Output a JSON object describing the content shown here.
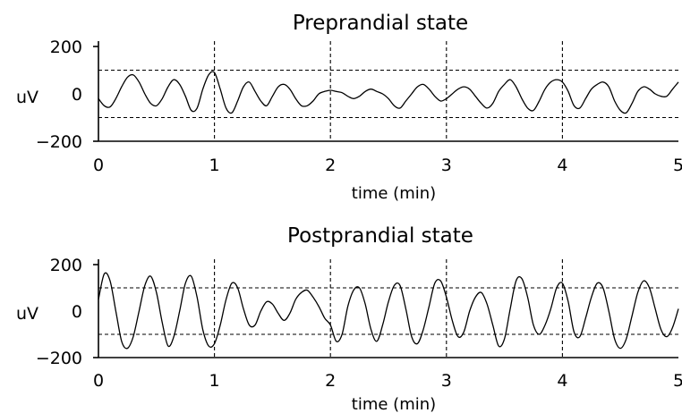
{
  "chart_data": [
    {
      "type": "line",
      "title": "Preprandial state",
      "xlabel": "time (min)",
      "ylabel": "uV",
      "xlim": [
        0,
        5
      ],
      "ylim": [
        -200,
        200
      ],
      "xticks": [
        "0",
        "1",
        "2",
        "3",
        "4",
        "5"
      ],
      "yticks": [
        "200",
        "0",
        "-200"
      ],
      "reference_lines_y": [
        100,
        -100
      ],
      "reference_lines_x": [
        1,
        2,
        3,
        4
      ],
      "grid": false,
      "series": [
        {
          "x": [
            0,
            0.05,
            0.1,
            0.15,
            0.2,
            0.25,
            0.3,
            0.35,
            0.4,
            0.45,
            0.5,
            0.55,
            0.6,
            0.65,
            0.7,
            0.75,
            0.8,
            0.85,
            0.9,
            0.95,
            1.0,
            1.05,
            1.1,
            1.15,
            1.2,
            1.25,
            1.3,
            1.35,
            1.4,
            1.45,
            1.5,
            1.55,
            1.6,
            1.65,
            1.7,
            1.75,
            1.8,
            1.85,
            1.9,
            1.95,
            2.0,
            2.05,
            2.1,
            2.15,
            2.2,
            2.25,
            2.3,
            2.35,
            2.4,
            2.45,
            2.5,
            2.55,
            2.6,
            2.65,
            2.7,
            2.75,
            2.8,
            2.85,
            2.9,
            2.95,
            3.0,
            3.05,
            3.1,
            3.15,
            3.2,
            3.25,
            3.3,
            3.35,
            3.4,
            3.45,
            3.5,
            3.55,
            3.6,
            3.65,
            3.7,
            3.75,
            3.8,
            3.85,
            3.9,
            3.95,
            4.0,
            4.05,
            4.1,
            4.15,
            4.2,
            4.25,
            4.3,
            4.35,
            4.4,
            4.45,
            4.5,
            4.55,
            4.6,
            4.65,
            4.7,
            4.75,
            4.8,
            4.85,
            4.9,
            4.95,
            5.0
          ],
          "y": [
            -20,
            -50,
            -55,
            -20,
            30,
            70,
            80,
            50,
            0,
            -40,
            -50,
            -20,
            30,
            60,
            40,
            -10,
            -70,
            -60,
            20,
            80,
            90,
            20,
            -60,
            -80,
            -30,
            30,
            50,
            10,
            -30,
            -50,
            -10,
            30,
            40,
            20,
            -20,
            -50,
            -50,
            -30,
            0,
            10,
            15,
            10,
            5,
            -10,
            -20,
            -10,
            10,
            20,
            10,
            0,
            -20,
            -50,
            -60,
            -30,
            0,
            30,
            40,
            20,
            -10,
            -30,
            -20,
            0,
            20,
            30,
            20,
            -10,
            -40,
            -60,
            -40,
            10,
            40,
            60,
            30,
            -20,
            -60,
            -70,
            -30,
            20,
            50,
            60,
            50,
            10,
            -50,
            -60,
            -20,
            20,
            40,
            50,
            30,
            -30,
            -70,
            -80,
            -40,
            10,
            30,
            20,
            0,
            -10,
            -10,
            20,
            50
          ]
        }
      ]
    },
    {
      "type": "line",
      "title": "Postprandial state",
      "xlabel": "time (min)",
      "ylabel": "uV",
      "xlim": [
        0,
        5
      ],
      "ylim": [
        -200,
        200
      ],
      "xticks": [
        "0",
        "1",
        "2",
        "3",
        "4",
        "5"
      ],
      "yticks": [
        "200",
        "0",
        "-200"
      ],
      "reference_lines_y": [
        100,
        -100
      ],
      "reference_lines_x": [
        1,
        2,
        3,
        4
      ],
      "grid": false,
      "series": [
        {
          "x": [
            0,
            0.05,
            0.1,
            0.15,
            0.2,
            0.25,
            0.3,
            0.35,
            0.4,
            0.45,
            0.5,
            0.55,
            0.6,
            0.65,
            0.7,
            0.75,
            0.8,
            0.85,
            0.9,
            0.95,
            1.0,
            1.05,
            1.1,
            1.15,
            1.2,
            1.25,
            1.3,
            1.35,
            1.4,
            1.45,
            1.5,
            1.55,
            1.6,
            1.65,
            1.7,
            1.75,
            1.8,
            1.85,
            1.9,
            1.95,
            2.0,
            2.05,
            2.1,
            2.15,
            2.2,
            2.25,
            2.3,
            2.35,
            2.4,
            2.45,
            2.5,
            2.55,
            2.6,
            2.65,
            2.7,
            2.75,
            2.8,
            2.85,
            2.9,
            2.95,
            3.0,
            3.05,
            3.1,
            3.15,
            3.2,
            3.25,
            3.3,
            3.35,
            3.4,
            3.45,
            3.5,
            3.55,
            3.6,
            3.65,
            3.7,
            3.75,
            3.8,
            3.85,
            3.9,
            3.95,
            4.0,
            4.05,
            4.1,
            4.15,
            4.2,
            4.25,
            4.3,
            4.35,
            4.4,
            4.45,
            4.5,
            4.55,
            4.6,
            4.65,
            4.7,
            4.75,
            4.8,
            4.85,
            4.9,
            4.95,
            5.0
          ],
          "y": [
            50,
            160,
            130,
            0,
            -130,
            -160,
            -110,
            0,
            110,
            150,
            80,
            -50,
            -150,
            -110,
            0,
            120,
            150,
            60,
            -80,
            -150,
            -140,
            -60,
            50,
            120,
            100,
            10,
            -60,
            -60,
            0,
            40,
            30,
            -10,
            -40,
            -10,
            50,
            80,
            90,
            60,
            20,
            -30,
            -60,
            -130,
            -100,
            20,
            90,
            100,
            30,
            -80,
            -130,
            -60,
            40,
            110,
            110,
            10,
            -110,
            -140,
            -80,
            20,
            120,
            130,
            60,
            -40,
            -110,
            -90,
            0,
            60,
            80,
            30,
            -60,
            -150,
            -120,
            10,
            130,
            140,
            60,
            -60,
            -100,
            -60,
            10,
            100,
            120,
            40,
            -90,
            -110,
            -30,
            60,
            120,
            100,
            0,
            -120,
            -160,
            -120,
            -20,
            80,
            130,
            100,
            10,
            -80,
            -110,
            -70,
            10
          ]
        }
      ]
    }
  ]
}
